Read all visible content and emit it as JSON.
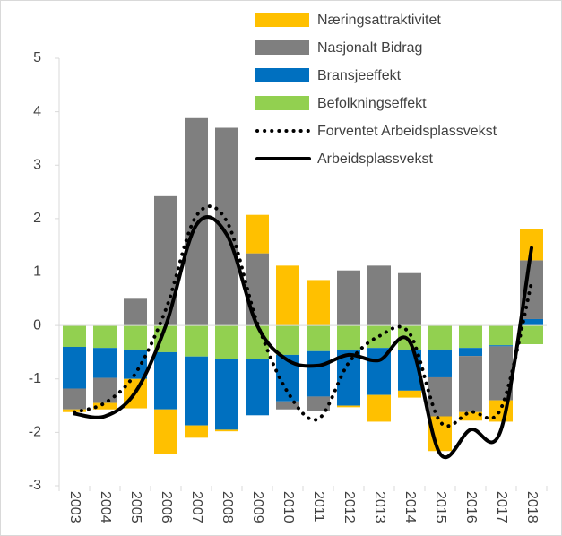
{
  "chart_data": {
    "type": "bar",
    "categories": [
      "2003",
      "2004",
      "2005",
      "2006",
      "2007",
      "2008",
      "2009",
      "2010",
      "2011",
      "2012",
      "2013",
      "2014",
      "2015",
      "2016",
      "2017",
      "2018"
    ],
    "series": [
      {
        "name": "Næringsattraktivitet",
        "type": "bar",
        "color": "#ffc000",
        "values": [
          -0.05,
          -0.12,
          -0.55,
          -0.83,
          -0.23,
          -0.03,
          0.72,
          1.12,
          0.85,
          -0.03,
          -0.5,
          -0.13,
          -0.65,
          -0.16,
          -0.4,
          0.58
        ]
      },
      {
        "name": "Nasjonalt Bidrag",
        "type": "bar",
        "color": "#7f7f7f",
        "values": [
          -0.39,
          -0.47,
          0.5,
          2.42,
          3.88,
          3.7,
          1.35,
          -0.15,
          -0.27,
          1.03,
          1.12,
          0.98,
          -0.73,
          -1.05,
          -1.01,
          1.1
        ]
      },
      {
        "name": "Bransjeeffekt",
        "type": "bar",
        "color": "#0070c0",
        "values": [
          -0.78,
          -0.56,
          -0.55,
          -1.07,
          -1.29,
          -1.33,
          -1.06,
          -0.87,
          -0.85,
          -1.05,
          -0.88,
          -0.77,
          -0.52,
          -0.15,
          -0.02,
          0.12
        ]
      },
      {
        "name": "Befolkningseffekt",
        "type": "bar",
        "color": "#92d050",
        "values": [
          -0.4,
          -0.42,
          -0.45,
          -0.5,
          -0.58,
          -0.62,
          -0.62,
          -0.55,
          -0.48,
          -0.45,
          -0.42,
          -0.45,
          -0.45,
          -0.42,
          -0.37,
          -0.35
        ]
      },
      {
        "name": "Forventet Arbeidsplassvekst",
        "type": "line",
        "line_style": "dotted",
        "color": "#000000",
        "values": [
          -1.62,
          -1.45,
          -0.9,
          0.3,
          2.05,
          1.95,
          0.05,
          -1.25,
          -1.75,
          -0.7,
          -0.2,
          -0.15,
          -1.8,
          -1.62,
          -1.55,
          0.8
        ]
      },
      {
        "name": "Arbeidsplassvekst",
        "type": "line",
        "line_style": "solid",
        "color": "#000000",
        "values": [
          -1.65,
          -1.7,
          -1.25,
          0.0,
          1.88,
          1.7,
          0.0,
          -0.65,
          -0.75,
          -0.55,
          -0.65,
          -0.3,
          -2.4,
          -1.95,
          -1.95,
          1.45
        ]
      }
    ],
    "ylim": [
      -3,
      5
    ],
    "yticks": [
      -3,
      -2,
      -1,
      0,
      1,
      2,
      3,
      4,
      5
    ],
    "grid": false,
    "legend": "top-right",
    "smooth": true
  }
}
